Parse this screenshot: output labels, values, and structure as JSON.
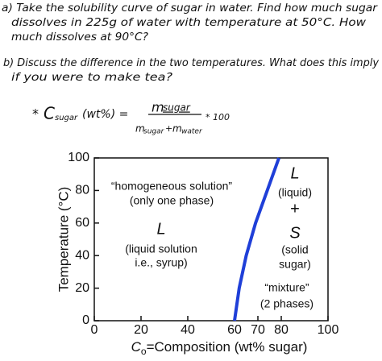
{
  "document": {
    "lines": [
      "a) Take the solubility curve of sugar in water. Find how much sugar",
      "dissolves in 225g of water with temperature at 50°C. How",
      "much dissolves at 90°C?",
      "b) Discuss the difference in the two temperatures. What does this imply",
      "if you were to make tea?"
    ],
    "formula": {
      "star": "*",
      "symbol": "C",
      "symbol_sub": "sugar",
      "unit": "(wt%) =",
      "numerator": "m",
      "numerator_sub": "sugar",
      "denominator": [
        "m",
        "sugar",
        "+",
        "m",
        "water"
      ],
      "factor": "* 100"
    }
  },
  "chart_data": {
    "type": "line",
    "x_label_symbol": "C",
    "x_label_sub": "o",
    "x_label_text": "=Composition (wt% sugar)",
    "y_label": "Temperature (°C)",
    "x": [
      60,
      62,
      65,
      69,
      74,
      79
    ],
    "series": [
      {
        "color": "#1f3fd8",
        "values": [
          0,
          20,
          40,
          60,
          80,
          100
        ]
      }
    ],
    "xlim": [
      0,
      100
    ],
    "xticks": [
      0,
      20,
      40,
      60,
      70,
      80,
      100
    ],
    "ylim": [
      0,
      100
    ],
    "yticks": [
      0,
      20,
      40,
      60,
      80,
      100
    ],
    "annotations": [
      {
        "text": "“homogeneous solution”",
        "color": "#e07000"
      },
      {
        "text": "(only one phase)",
        "color": "#e07000"
      },
      {
        "text": "L",
        "color": "#111111"
      },
      {
        "text": "(liquid solution",
        "color": "#111111"
      },
      {
        "text": "i.e., syrup)",
        "color": "#111111"
      },
      {
        "text": "L",
        "color": "#111111"
      },
      {
        "text": "(liquid)",
        "color": "#111111"
      },
      {
        "text": "+",
        "color": "#111111"
      },
      {
        "text": "S",
        "color": "#111111"
      },
      {
        "text": "(solid",
        "color": "#111111"
      },
      {
        "text": "sugar)",
        "color": "#111111"
      },
      {
        "text": "“mixture”",
        "color": "#e07000"
      },
      {
        "text": "(2 phases)",
        "color": "#e07000"
      }
    ]
  }
}
